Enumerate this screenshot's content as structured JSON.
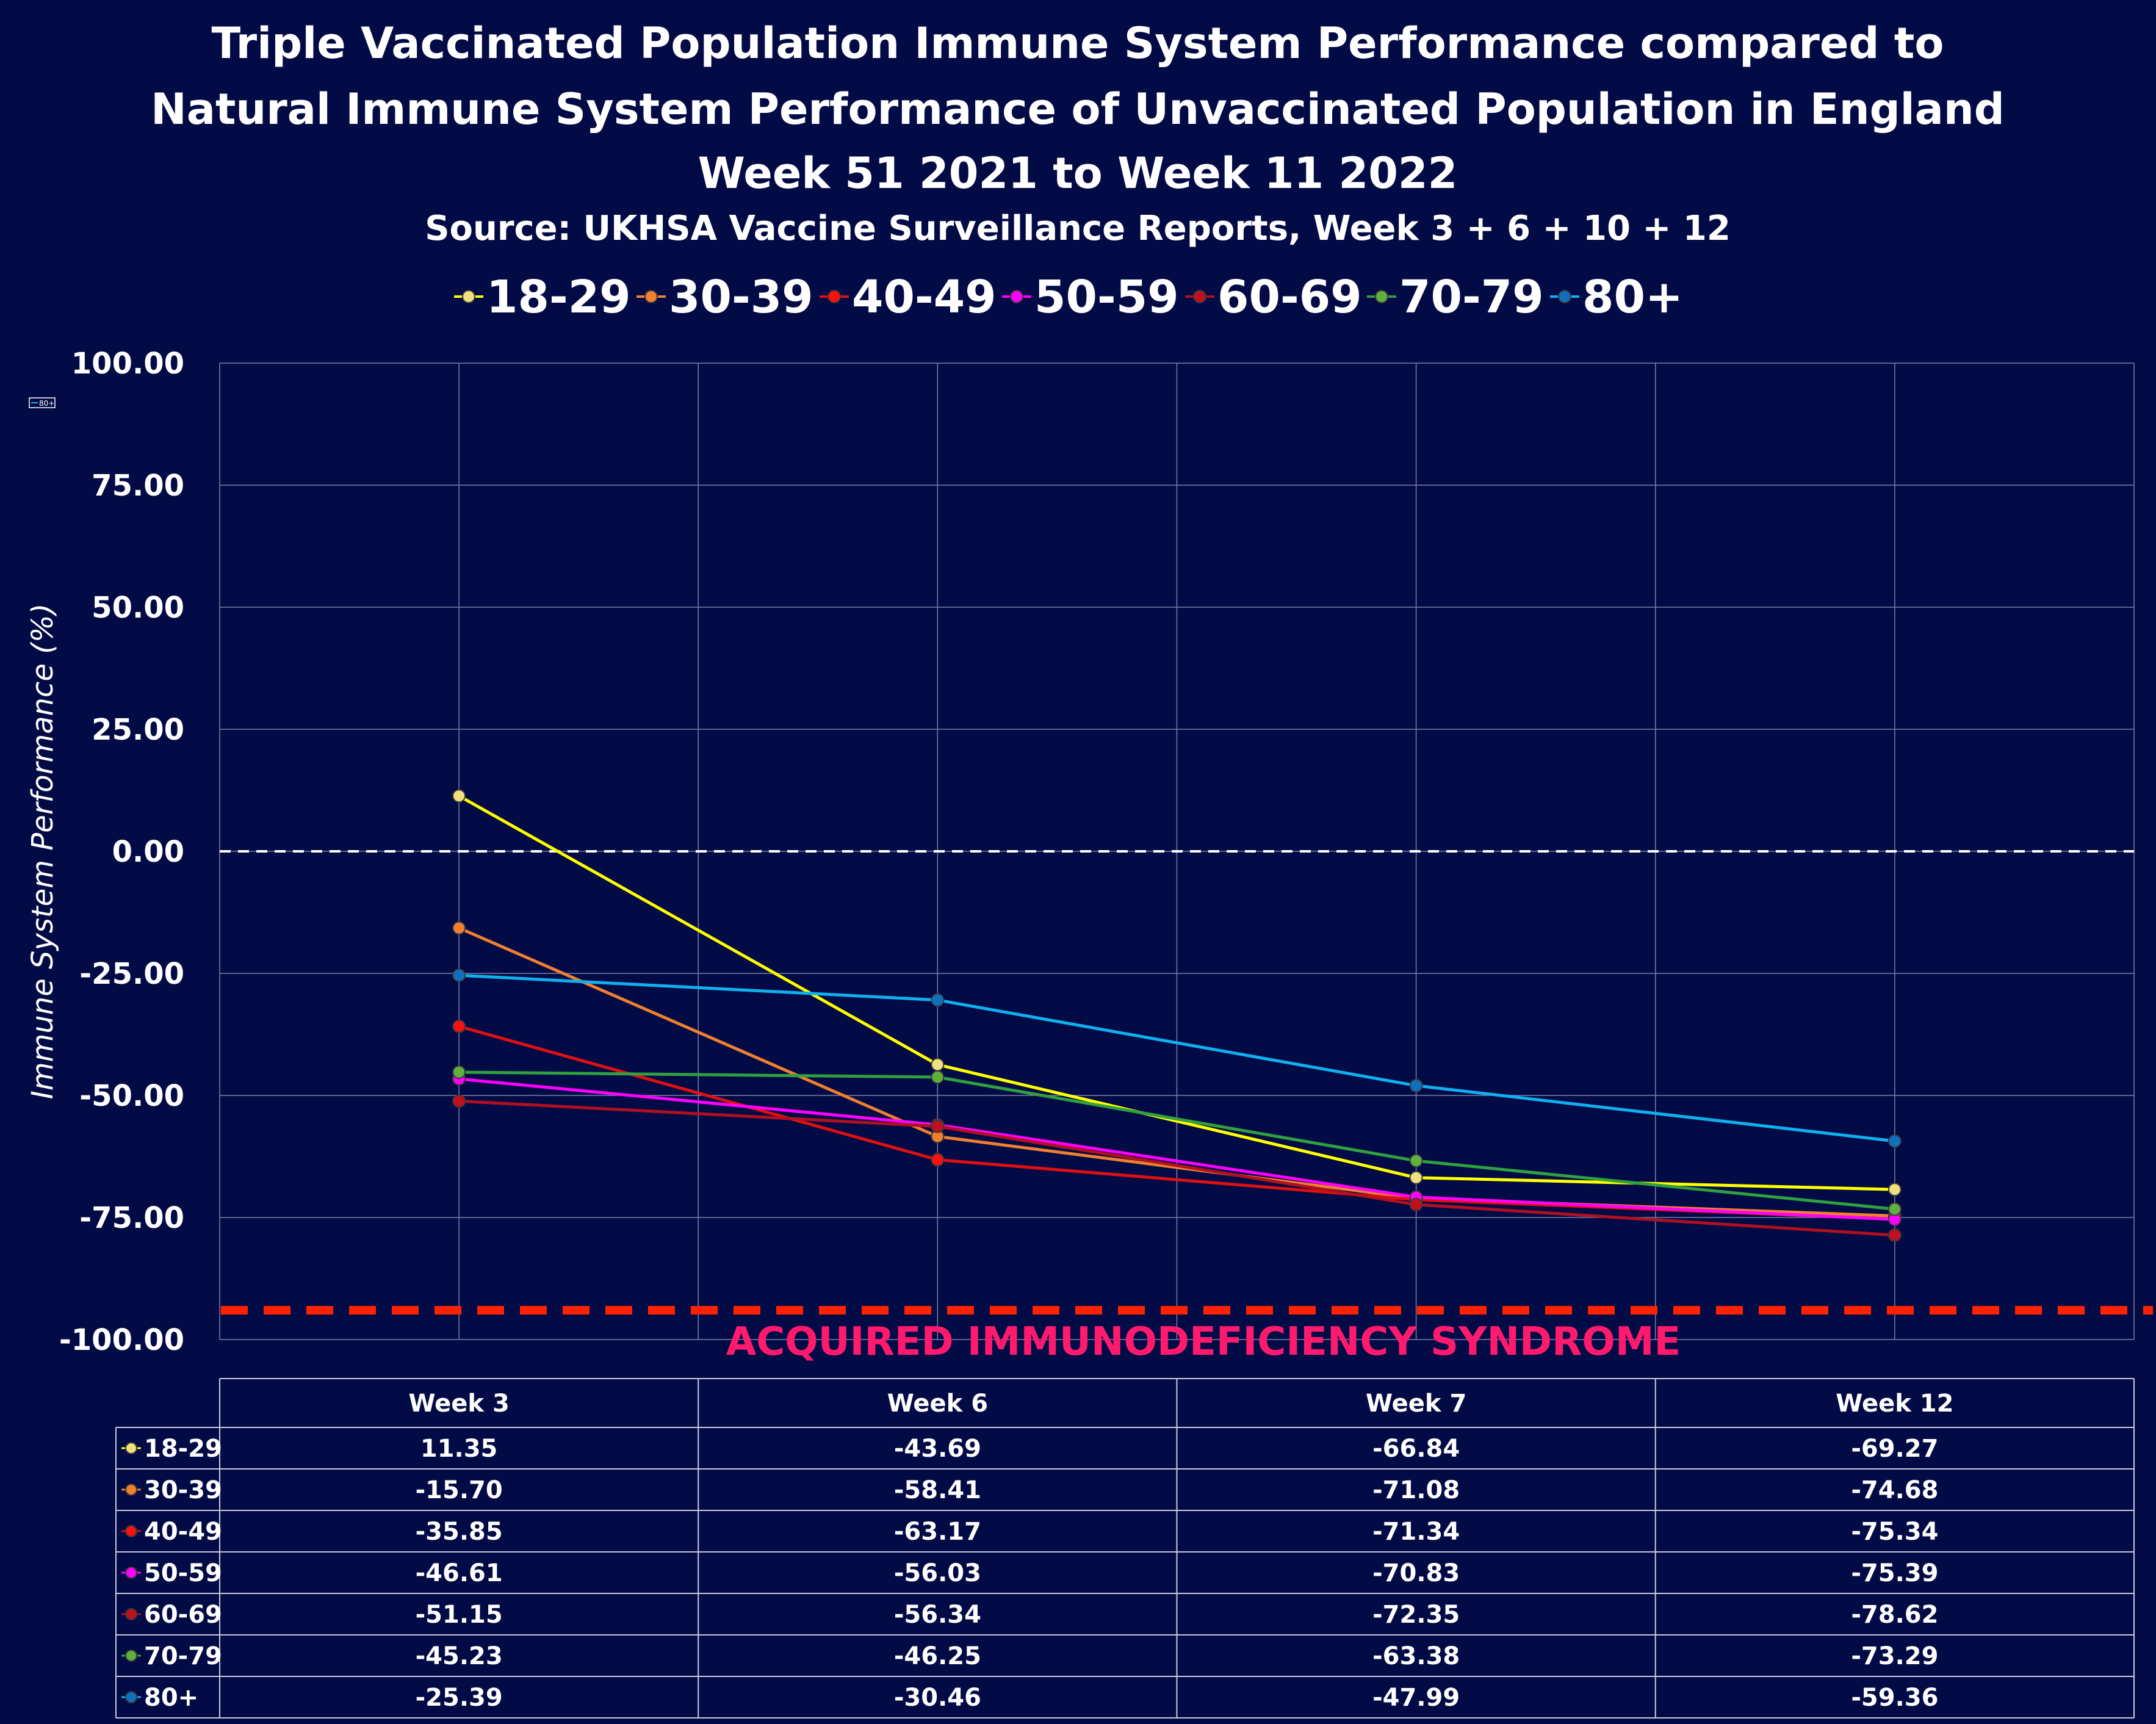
{
  "title_lines": [
    "Triple Vaccinated Population Immune System Performance compared to",
    "Natural Immune System Performance of Unvaccinated Population in England",
    "Week 51 2021 to Week 11 2022"
  ],
  "subtitle": "Source: UKHSA Vaccine Surveillance Reports, Week 3 + 6 + 10 + 12",
  "annotation": "ACQUIRED IMMUNODEFICIENCY SYNDROME",
  "mini_legend_label": "80+",
  "chart_data": {
    "type": "line",
    "title": "Triple Vaccinated Population Immune System Performance compared to Natural Immune System Performance of Unvaccinated Population in England Week 51 2021 to Week 11 2022",
    "subtitle": "Source: UKHSA Vaccine Surveillance Reports, Week 3 + 6 + 10 + 12",
    "ylabel": "Immune System Performance (%)",
    "xlabel": "",
    "categories": [
      "Week 3",
      "Week 6",
      "Week 7",
      "Week 12"
    ],
    "ylim": [
      -100,
      100
    ],
    "yticks": [
      "100.00",
      "75.00",
      "50.00",
      "25.00",
      "0.00",
      "-25.00",
      "-50.00",
      "-75.00",
      "-100.00"
    ],
    "grid": true,
    "legend_position": "top",
    "reference_lines": [
      {
        "y": 0,
        "color": "#ffffff",
        "style": "dashed"
      },
      {
        "y": -94,
        "color": "#ff2200",
        "style": "dashed"
      }
    ],
    "series": [
      {
        "name": "18-29",
        "color": "#ffff00",
        "marker": "#f0e080",
        "values": [
          11.35,
          -43.69,
          -66.84,
          -69.27
        ],
        "labels": [
          "11.35",
          "-43.69",
          "-66.84",
          "-69.27"
        ]
      },
      {
        "name": "30-39",
        "color": "#f08030",
        "marker": "#f08030",
        "values": [
          -15.7,
          -58.41,
          -71.08,
          -74.68
        ],
        "labels": [
          "-15.70",
          "-58.41",
          "-71.08",
          "-74.68"
        ]
      },
      {
        "name": "40-49",
        "color": "#e01010",
        "marker": "#ff1010",
        "values": [
          -35.85,
          -63.17,
          -71.34,
          -75.34
        ],
        "labels": [
          "-35.85",
          "-63.17",
          "-71.34",
          "-75.34"
        ]
      },
      {
        "name": "50-59",
        "color": "#ff00ff",
        "marker": "#ff00ff",
        "values": [
          -46.61,
          -56.03,
          -70.83,
          -75.39
        ],
        "labels": [
          "-46.61",
          "-56.03",
          "-70.83",
          "-75.39"
        ]
      },
      {
        "name": "60-69",
        "color": "#b01020",
        "marker": "#c01020",
        "values": [
          -51.15,
          -56.34,
          -72.35,
          -78.62
        ],
        "labels": [
          "-51.15",
          "-56.34",
          "-72.35",
          "-78.62"
        ]
      },
      {
        "name": "70-79",
        "color": "#30a040",
        "marker": "#60b040",
        "values": [
          -45.23,
          -46.25,
          -63.38,
          -73.29
        ],
        "labels": [
          "-45.23",
          "-46.25",
          "-63.38",
          "-73.29"
        ]
      },
      {
        "name": "80+",
        "color": "#10b0f0",
        "marker": "#1070c0",
        "values": [
          -25.39,
          -30.46,
          -47.99,
          -59.36
        ],
        "labels": [
          "-25.39",
          "-30.46",
          "-47.99",
          "-59.36"
        ]
      }
    ]
  }
}
